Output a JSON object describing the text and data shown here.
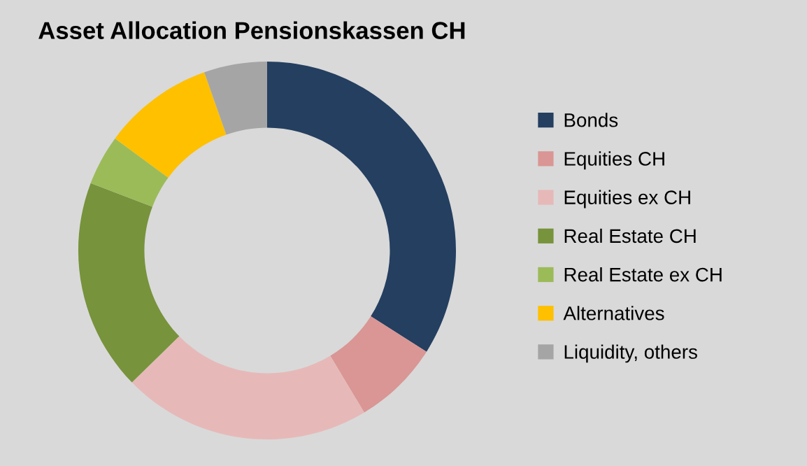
{
  "chart_data": {
    "type": "donut",
    "title": "Asset Allocation Pensionskassen CH",
    "categories": [
      "Bonds",
      "Equities CH",
      "Equities ex CH",
      "Real Estate CH",
      "Real Estate ex CH",
      "Alternatives",
      "Liquidity, others"
    ],
    "values": [
      34.0,
      7.4,
      21.3,
      18.1,
      4.3,
      9.5,
      5.4
    ],
    "colors": [
      "#243f60",
      "#d99694",
      "#e6b9b8",
      "#77933c",
      "#9bbb59",
      "#ffc000",
      "#a5a5a5"
    ],
    "legend": "right"
  }
}
